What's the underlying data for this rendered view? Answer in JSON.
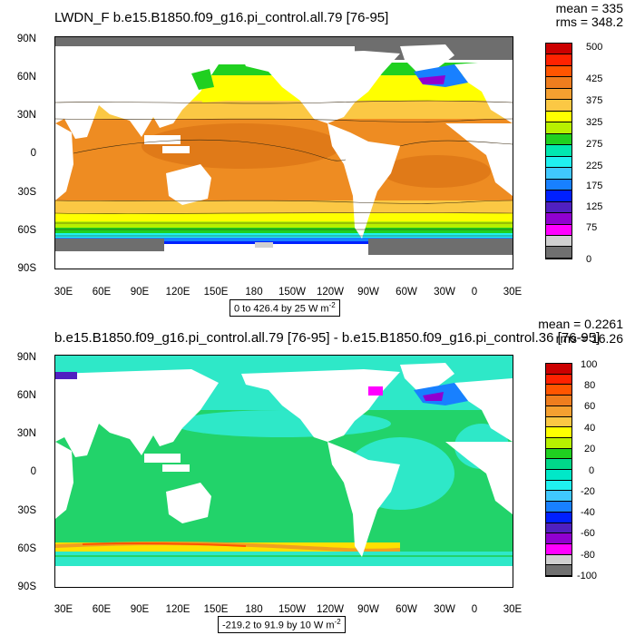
{
  "panels": [
    {
      "title": "LWDN_F b.e15.B1850.f09_g16.pi_control.all.79 [76-95]",
      "mean": "mean = 335",
      "rms": "rms = 348.2",
      "range_text": "0 to 426.4 by 25",
      "range_units": "W m",
      "range_exp": "-2",
      "y_ticks": [
        "90N",
        "60N",
        "30N",
        "0",
        "30S",
        "60S",
        "90S"
      ],
      "x_ticks": [
        "30E",
        "60E",
        "90E",
        "120E",
        "150E",
        "180",
        "150W",
        "120W",
        "90W",
        "60W",
        "30W",
        "0",
        "30E"
      ],
      "colorbar_labels": [
        "500",
        "425",
        "375",
        "325",
        "275",
        "225",
        "175",
        "125",
        "75",
        "0"
      ],
      "colorbar_colors": [
        "#cc0000",
        "#ff2200",
        "#ff5500",
        "#ee7d1e",
        "#f5a030",
        "#fbc844",
        "#ffff00",
        "#b8f000",
        "#20d020",
        "#00e8b0",
        "#20f0f0",
        "#40c8ff",
        "#1880ff",
        "#0020ff",
        "#5020c0",
        "#9000d0",
        "#ff00ff",
        "#d0d0d0",
        "#707070"
      ],
      "colors": {
        "land": "#ffffff",
        "ice": "#6e6e6e"
      }
    },
    {
      "title": "b.e15.B1850.f09_g16.pi_control.all.79 [76-95] - b.e15.B1850.f09_g16.pi_control.36 [76-95]",
      "mean": "mean = 0.2261",
      "rms": "rms = 16.26",
      "range_text": "-219.2 to 91.9 by 10",
      "range_units": "W m",
      "range_exp": "-2",
      "y_ticks": [
        "90N",
        "60N",
        "30N",
        "0",
        "30S",
        "60S",
        "90S"
      ],
      "x_ticks": [
        "30E",
        "60E",
        "90E",
        "120E",
        "150E",
        "180",
        "150W",
        "120W",
        "90W",
        "60W",
        "30W",
        "0",
        "30E"
      ],
      "colorbar_labels": [
        "100",
        "80",
        "60",
        "40",
        "20",
        "0",
        "-20",
        "-40",
        "-60",
        "-80",
        "-100"
      ],
      "colorbar_colors": [
        "#cc0000",
        "#ff2200",
        "#ff5500",
        "#ee7d1e",
        "#f5a030",
        "#fbc844",
        "#ffff00",
        "#b8f000",
        "#20d020",
        "#00d88a",
        "#00e8c8",
        "#20f0f0",
        "#40c8ff",
        "#1880ff",
        "#0020ff",
        "#5020c0",
        "#9000d0",
        "#ff00ff",
        "#d0d0d0",
        "#707070"
      ],
      "colors": {
        "ocean_main": "#22d36a",
        "ocean_alt": "#2ee8c8",
        "band_a": "#f0a020",
        "band_b": "#ffe000"
      }
    }
  ]
}
